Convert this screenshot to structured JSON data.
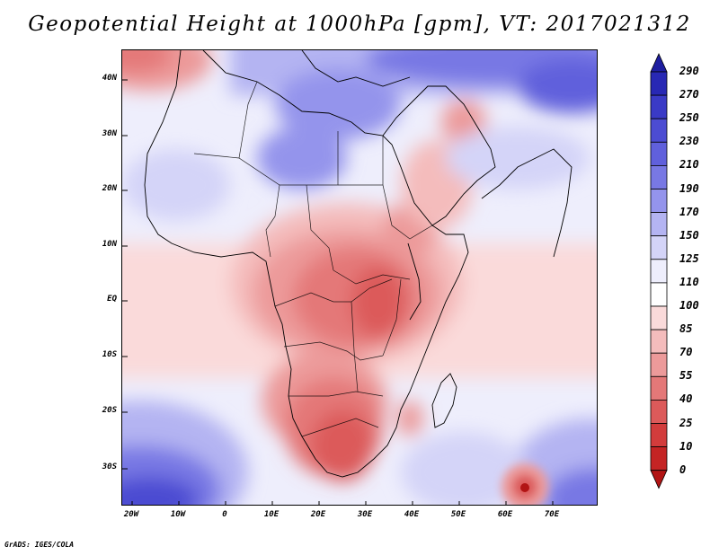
{
  "title": "Geopotential Height at 1000hPa [gpm], VT: 2017021312",
  "credit": "GrADS: IGES/COLA",
  "axes": {
    "lat_labels": [
      "40N",
      "30N",
      "20N",
      "10N",
      "EQ",
      "10S",
      "20S",
      "30S"
    ],
    "lon_labels": [
      "20W",
      "10W",
      "0",
      "10E",
      "20E",
      "30E",
      "40E",
      "50E",
      "60E",
      "70E"
    ]
  },
  "colorbar": {
    "levels": [
      "290",
      "270",
      "250",
      "230",
      "210",
      "190",
      "170",
      "150",
      "125",
      "110",
      "100",
      "85",
      "70",
      "55",
      "40",
      "25",
      "10",
      "0"
    ],
    "colors": [
      "#1e1ea0",
      "#2828b4",
      "#3a3ac6",
      "#4c4cd2",
      "#6060dc",
      "#7878e4",
      "#9494ec",
      "#b4b4f2",
      "#d4d4f8",
      "#eeeefc",
      "#ffffff",
      "#fadada",
      "#f4bcbc",
      "#ec9a9a",
      "#e47878",
      "#dc5a5a",
      "#d23c3c",
      "#c42424",
      "#b21414"
    ]
  }
}
